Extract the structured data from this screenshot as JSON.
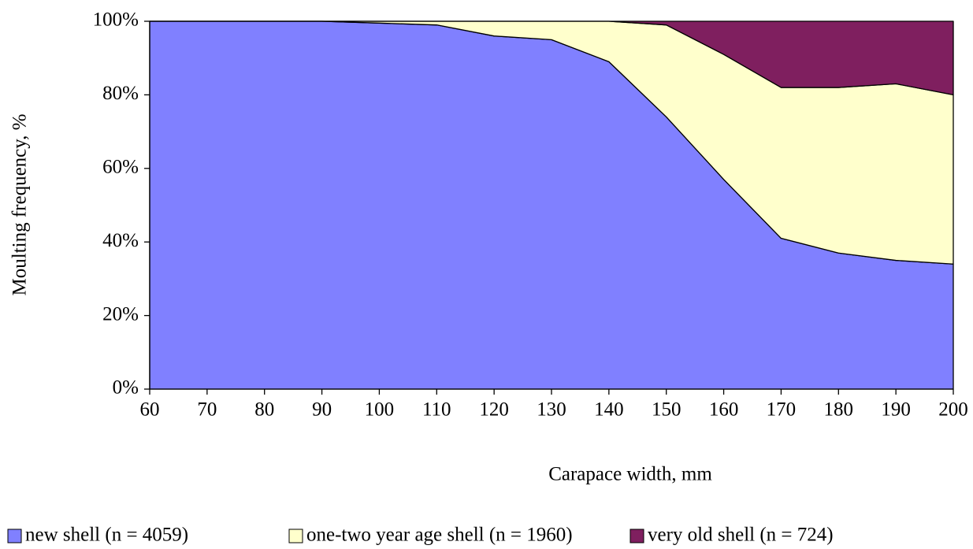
{
  "chart_data": {
    "type": "stacked_area",
    "x_label": "Carapace width, mm",
    "y_label": "Moulting frequency, %",
    "x": [
      60,
      70,
      80,
      90,
      100,
      110,
      120,
      130,
      140,
      150,
      160,
      170,
      180,
      190,
      200
    ],
    "xlim": [
      60,
      200
    ],
    "xticks": [
      60,
      70,
      80,
      90,
      100,
      110,
      120,
      130,
      140,
      150,
      160,
      170,
      180,
      190,
      200
    ],
    "ylim": [
      0,
      100
    ],
    "yticks": [
      {
        "value": 0,
        "label": "0%"
      },
      {
        "value": 20,
        "label": "20%"
      },
      {
        "value": 40,
        "label": "40%"
      },
      {
        "value": 60,
        "label": "60%"
      },
      {
        "value": 80,
        "label": "80%"
      },
      {
        "value": 100,
        "label": "100%"
      }
    ],
    "series": [
      {
        "name": "new shell (n = 4059)",
        "color": "#8080ff",
        "values": [
          100,
          100,
          100,
          100,
          99.5,
          99,
          96,
          95,
          89,
          74,
          57,
          41,
          37,
          35,
          34
        ]
      },
      {
        "name": "one-two year age shell (n = 1960)",
        "color": "#ffffcc",
        "values": [
          0,
          0,
          0,
          0,
          0.5,
          1,
          4,
          5,
          11,
          25,
          34,
          41,
          45,
          48,
          46
        ]
      },
      {
        "name": "very old shell (n = 724)",
        "color": "#7f1f5f",
        "values": [
          0,
          0,
          0,
          0,
          0,
          0,
          0,
          0,
          0,
          1,
          9,
          18,
          18,
          17,
          20
        ]
      }
    ]
  }
}
